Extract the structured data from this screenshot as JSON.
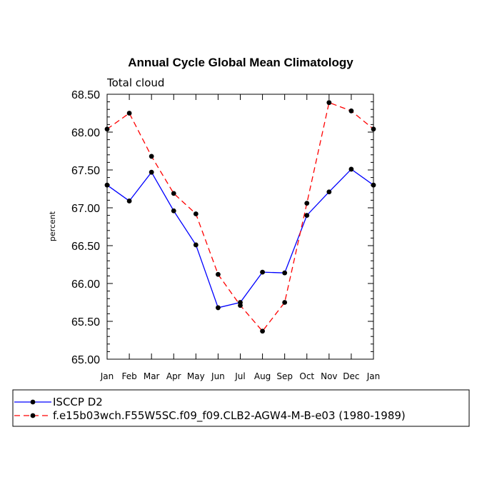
{
  "chart_data": {
    "type": "line",
    "title": "Annual Cycle Global Mean Climatology",
    "subtitle": "Total cloud",
    "xlabel": "",
    "ylabel": "percent",
    "categories": [
      "Jan",
      "Feb",
      "Mar",
      "Apr",
      "May",
      "Jun",
      "Jul",
      "Aug",
      "Sep",
      "Oct",
      "Nov",
      "Dec",
      "Jan"
    ],
    "ylim": [
      65.0,
      68.5
    ],
    "yticks": [
      "65.00",
      "65.50",
      "66.00",
      "66.50",
      "67.00",
      "67.50",
      "68.00",
      "68.50"
    ],
    "series": [
      {
        "name": "ISCCP D2",
        "color": "#0000ff",
        "dash": "solid",
        "values": [
          67.3,
          67.09,
          67.47,
          66.96,
          66.51,
          65.68,
          65.75,
          66.15,
          66.14,
          66.9,
          67.21,
          67.51,
          67.3
        ]
      },
      {
        "name": "f.e15b03wch.F55W5SC.f09_f09.CLB2-AGW4-M-B-e03 (1980-1989)",
        "color": "#ff0000",
        "dash": "dashed",
        "values": [
          68.04,
          68.25,
          67.68,
          67.19,
          66.92,
          66.12,
          65.71,
          65.37,
          65.75,
          67.06,
          68.39,
          68.28,
          68.04
        ]
      }
    ]
  }
}
